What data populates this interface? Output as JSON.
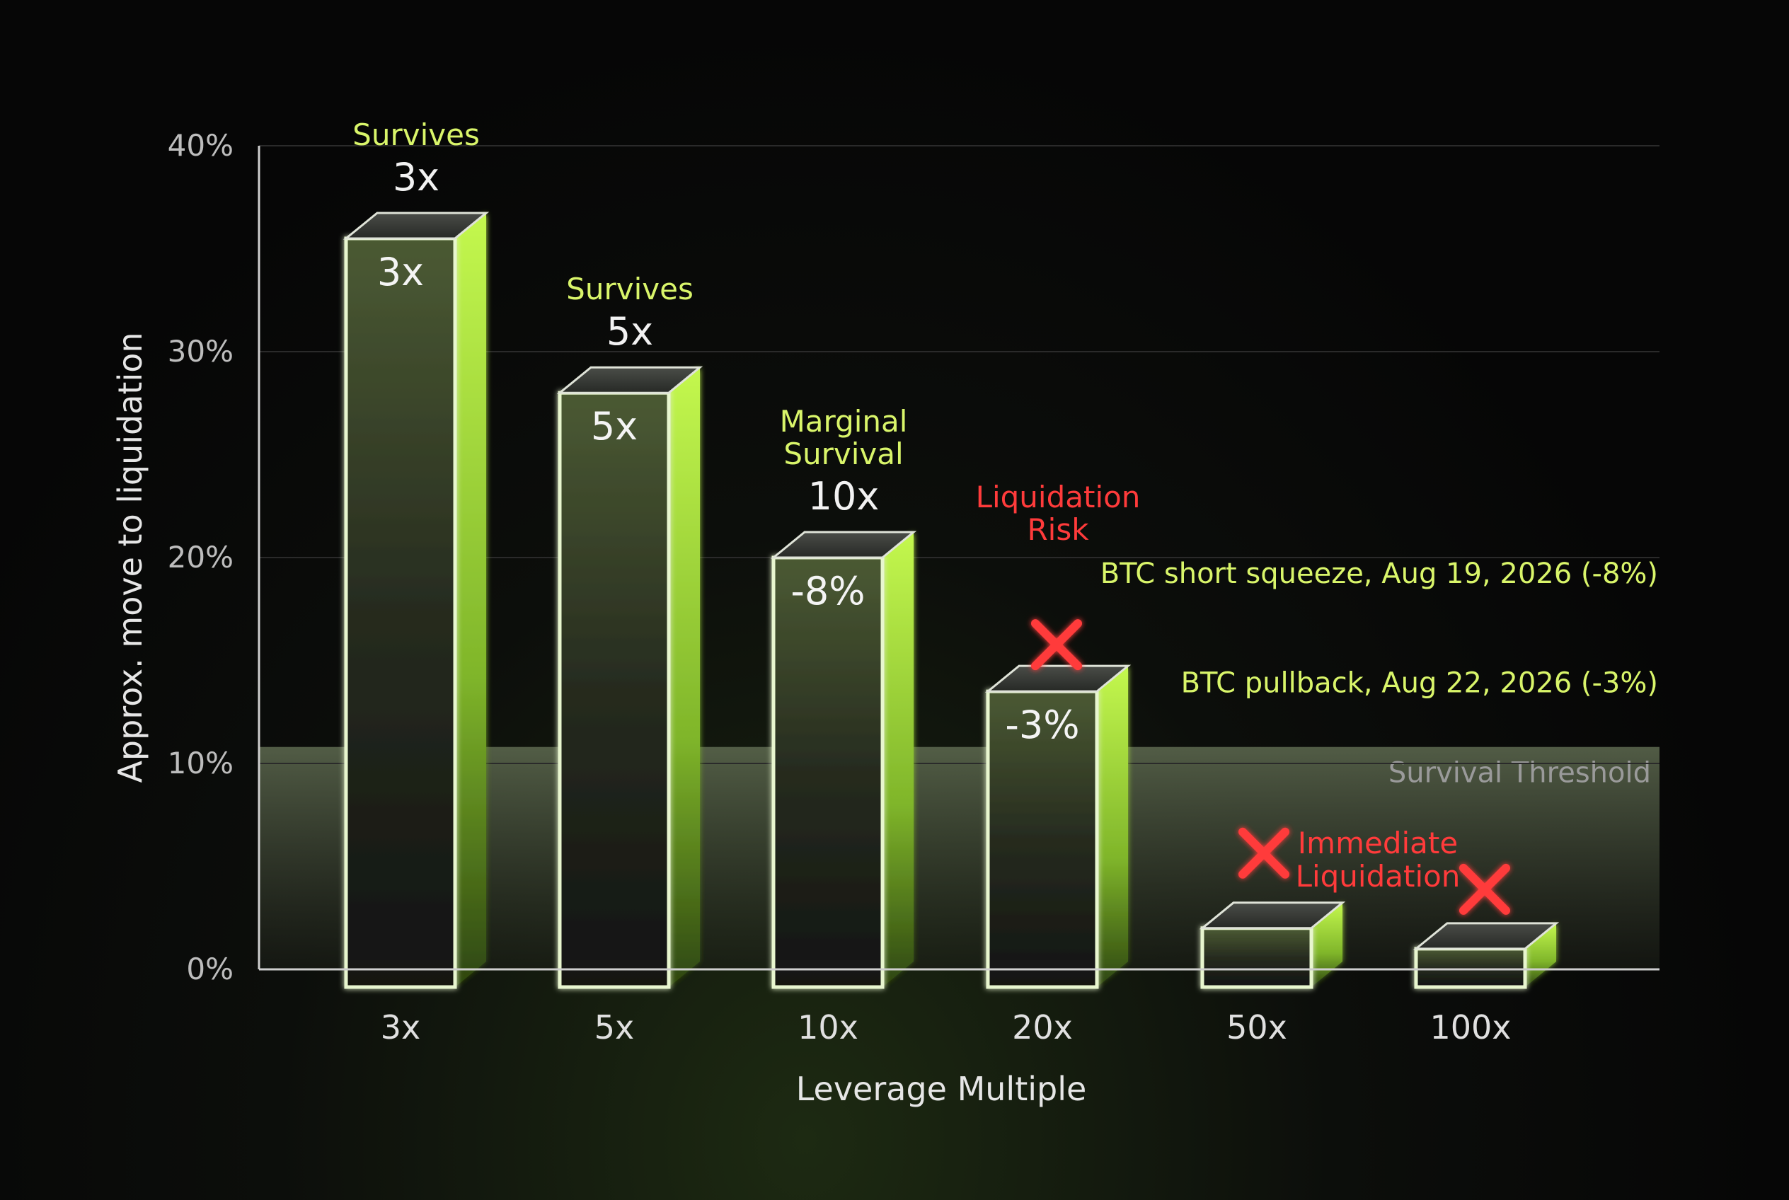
{
  "colors": {
    "background": "#070707",
    "accent": "#b8f545",
    "accent_text": "#d9f56a",
    "danger": "#ff3b3b",
    "axis": "#cfcfcf",
    "threshold_text": "#9a9a9a"
  },
  "chart_data": {
    "type": "bar",
    "title": "",
    "xlabel": "Leverage Multiple",
    "ylabel": "Approx. move to liquidation",
    "ylim": [
      0,
      40
    ],
    "yticks": [
      "0%",
      "10%",
      "20%",
      "30%",
      "40%"
    ],
    "categories": [
      "3x",
      "5x",
      "10x",
      "20x",
      "50x",
      "100x"
    ],
    "values": [
      35.5,
      28,
      20,
      13.5,
      2,
      1
    ],
    "status": [
      "survive",
      "survive",
      "marginal",
      "risk",
      "liquidated",
      "liquidated"
    ],
    "status_labels": [
      [
        "Survives"
      ],
      [
        "Survives"
      ],
      [
        "Marginal",
        "Survival"
      ],
      [
        "Liquidation",
        "Risk"
      ],
      [],
      []
    ],
    "top_labels": [
      "3x",
      "5x",
      "10x",
      "",
      "",
      ""
    ],
    "face_labels": [
      "3x",
      "5x",
      "-8%",
      "-3%",
      "",
      ""
    ],
    "x_marks": [
      false,
      false,
      false,
      true,
      true,
      true
    ],
    "immediate_label": [
      "Immediate",
      "Liquidation"
    ],
    "reference_lines": [
      {
        "label": "BTC short squeeze, Aug 19, 2026 (-8%)",
        "value": 18
      },
      {
        "label": "BTC pullback, Aug 22, 2026 (-3%)",
        "value": 12.7
      }
    ],
    "threshold": {
      "label": "Survival Threshold",
      "value": 10.8
    },
    "grid": true,
    "legend": "none"
  }
}
